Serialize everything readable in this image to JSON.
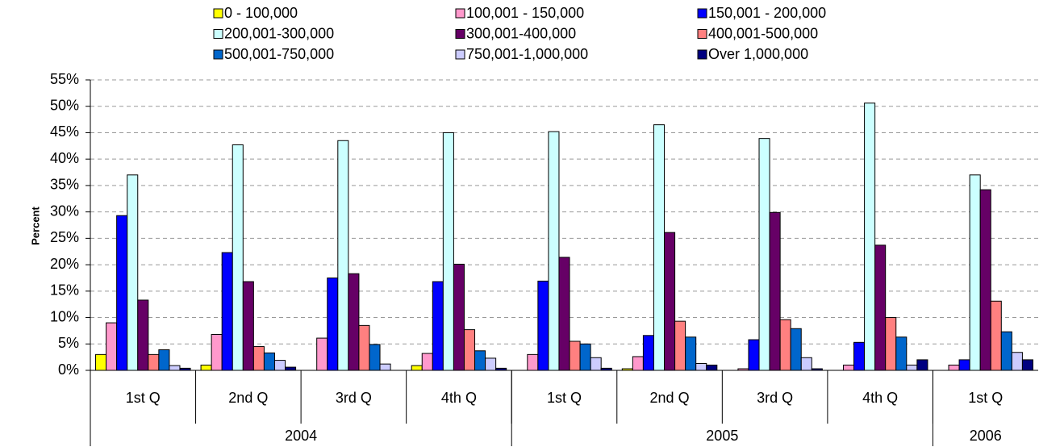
{
  "chart_data": {
    "type": "bar",
    "y_label": "Percent",
    "categories": [
      "1st Q",
      "2nd Q",
      "3rd Q",
      "4th Q",
      "1st Q",
      "2nd Q",
      "3rd Q",
      "4th Q",
      "1st Q"
    ],
    "category_groups": [
      {
        "label": "2004",
        "span": 4
      },
      {
        "label": "2005",
        "span": 4
      },
      {
        "label": "2006",
        "span": 1
      }
    ],
    "series": [
      {
        "name": "0 - 100,000",
        "color": "#ffff00",
        "values": [
          3.0,
          1.0,
          0,
          0.9,
          0,
          0.3,
          0,
          0,
          0
        ]
      },
      {
        "name": "100,001 - 150,000",
        "color": "#ff99cc",
        "values": [
          9.0,
          6.8,
          6.1,
          3.2,
          3.0,
          2.6,
          0.3,
          1.0,
          1.0
        ]
      },
      {
        "name": "150,001 - 200,000",
        "color": "#0000ff",
        "values": [
          29.3,
          22.3,
          17.5,
          16.8,
          16.9,
          6.6,
          5.8,
          5.3,
          2.0
        ]
      },
      {
        "name": "200,001-300,000",
        "color": "#ccffff",
        "values": [
          37.0,
          42.7,
          43.5,
          45.0,
          45.2,
          46.5,
          43.9,
          50.6,
          37.0
        ]
      },
      {
        "name": "300,001-400,000",
        "color": "#660066",
        "values": [
          13.3,
          16.8,
          18.3,
          20.1,
          21.4,
          26.1,
          29.9,
          23.7,
          34.2
        ]
      },
      {
        "name": "400,001-500,000",
        "color": "#ff8080",
        "values": [
          3.0,
          4.5,
          8.5,
          7.7,
          5.5,
          9.3,
          9.6,
          10.0,
          13.1
        ]
      },
      {
        "name": "500,001-750,000",
        "color": "#0066cc",
        "values": [
          3.9,
          3.3,
          4.9,
          3.7,
          5.0,
          6.3,
          7.9,
          6.3,
          7.3
        ]
      },
      {
        "name": "750,001-1,000,000",
        "color": "#ccccff",
        "values": [
          0.9,
          1.9,
          1.2,
          2.3,
          2.4,
          1.3,
          2.4,
          1.0,
          3.4
        ]
      },
      {
        "name": "Over 1,000,000",
        "color": "#000080",
        "values": [
          0.4,
          0.6,
          0,
          0.4,
          0.4,
          1.0,
          0.3,
          2.0,
          2.0
        ]
      }
    ],
    "ylim": [
      0,
      55
    ],
    "yticks": [
      {
        "value": 0,
        "label": "0%"
      },
      {
        "value": 5,
        "label": "5%"
      },
      {
        "value": 10,
        "label": "10%"
      },
      {
        "value": 15,
        "label": "15%"
      },
      {
        "value": 20,
        "label": "20%"
      },
      {
        "value": 25,
        "label": "25%"
      },
      {
        "value": 30,
        "label": "30%"
      },
      {
        "value": 35,
        "label": "35%"
      },
      {
        "value": 40,
        "label": "40%"
      },
      {
        "value": 45,
        "label": "45%"
      },
      {
        "value": 50,
        "label": "50%"
      },
      {
        "value": 55,
        "label": "55%"
      }
    ],
    "grid": true,
    "legend_position": "top"
  }
}
